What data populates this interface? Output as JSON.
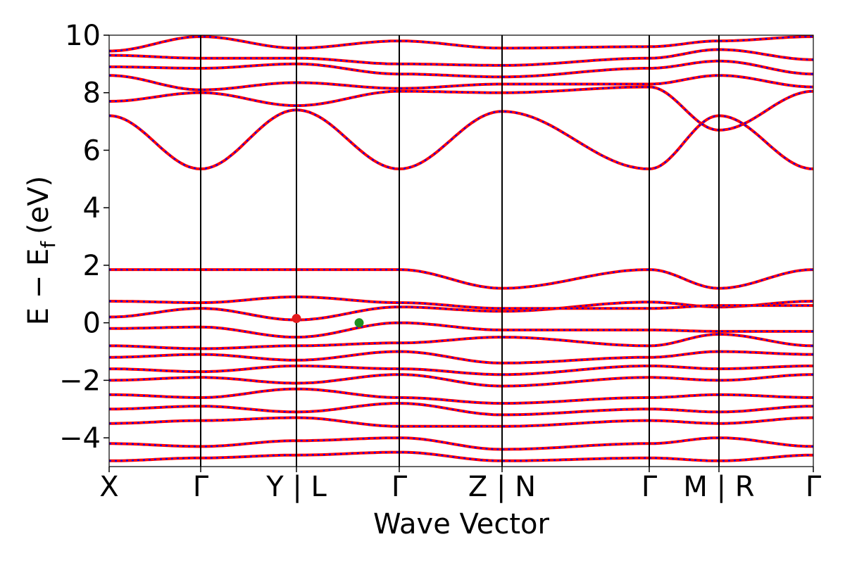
{
  "chart_data": {
    "type": "line",
    "xlabel": "Wave Vector",
    "ylabel": "E − E",
    "ylabel_sub": "f",
    "ylabel_unit": "(eV)",
    "ylim": [
      -5,
      10
    ],
    "y_ticks": [
      -4,
      -2,
      0,
      2,
      4,
      6,
      8,
      10
    ],
    "y_tick_labels": [
      "−4",
      "−2",
      "0",
      "2",
      "4",
      "6",
      "8",
      "10"
    ],
    "x_range": [
      0,
      1
    ],
    "kpoint_ticks": [
      {
        "x": 0.0,
        "label": "X"
      },
      {
        "x": 0.13,
        "label": "Γ"
      },
      {
        "x": 0.266,
        "label": "Y | L"
      },
      {
        "x": 0.412,
        "label": "Γ"
      },
      {
        "x": 0.558,
        "label": "Z | N"
      },
      {
        "x": 0.767,
        "label": "Γ"
      },
      {
        "x": 0.866,
        "label": "M | R"
      },
      {
        "x": 1.0,
        "label": "Γ"
      }
    ],
    "series_style": {
      "red": "#ff0000",
      "blue": "#0000ff"
    },
    "band_anchors": [
      [
        0.0,
        0.13,
        0.266,
        0.412,
        0.558,
        0.767,
        0.866,
        1.0
      ],
      [
        -0.2,
        -0.15,
        -0.5,
        -0.0,
        -0.25,
        -0.25,
        -0.3,
        -0.3
      ],
      [
        0.2,
        0.5,
        0.1,
        0.55,
        0.4,
        0.72,
        0.55,
        0.75
      ],
      [
        0.75,
        0.7,
        0.9,
        0.7,
        0.5,
        0.5,
        0.6,
        0.6
      ],
      [
        1.85,
        1.85,
        1.85,
        1.85,
        1.2,
        1.85,
        1.2,
        1.85
      ],
      [
        -0.8,
        -0.9,
        -0.8,
        -0.7,
        -0.5,
        -0.8,
        -0.4,
        -0.8
      ],
      [
        -1.2,
        -1.1,
        -1.3,
        -1.0,
        -1.4,
        -1.2,
        -1.0,
        -1.1
      ],
      [
        -1.6,
        -1.7,
        -1.5,
        -1.6,
        -1.8,
        -1.5,
        -1.6,
        -1.5
      ],
      [
        -2.0,
        -1.9,
        -2.1,
        -1.8,
        -2.2,
        -1.9,
        -2.0,
        -1.8
      ],
      [
        -2.5,
        -2.6,
        -2.3,
        -2.6,
        -2.8,
        -2.6,
        -2.5,
        -2.6
      ],
      [
        -3.0,
        -2.9,
        -3.1,
        -2.8,
        -3.2,
        -3.0,
        -3.1,
        -2.9
      ],
      [
        -3.5,
        -3.4,
        -3.3,
        -3.6,
        -3.6,
        -3.4,
        -3.5,
        -3.3
      ],
      [
        -4.2,
        -4.3,
        -4.1,
        -4.0,
        -4.4,
        -4.2,
        -4.0,
        -4.3
      ],
      [
        -4.8,
        -4.7,
        -4.6,
        -4.5,
        -4.8,
        -4.7,
        -4.8,
        -4.6
      ],
      [
        7.2,
        5.35,
        7.4,
        5.35,
        7.35,
        5.35,
        7.2,
        5.35
      ],
      [
        7.7,
        8.0,
        7.55,
        8.05,
        8.0,
        8.2,
        6.7,
        8.05
      ],
      [
        8.6,
        8.1,
        8.35,
        8.15,
        8.3,
        8.3,
        8.6,
        8.2
      ],
      [
        8.9,
        8.85,
        9.0,
        8.65,
        8.55,
        8.85,
        9.1,
        8.65
      ],
      [
        9.3,
        9.2,
        9.2,
        9.0,
        8.95,
        9.2,
        9.5,
        9.15
      ],
      [
        9.45,
        9.95,
        9.55,
        9.8,
        9.55,
        9.6,
        9.8,
        9.95
      ]
    ],
    "markers": [
      {
        "x": 0.266,
        "y": 0.15,
        "color": "#e31a1c"
      },
      {
        "x": 0.355,
        "y": 0.0,
        "color": "#1f8f1f"
      }
    ]
  }
}
